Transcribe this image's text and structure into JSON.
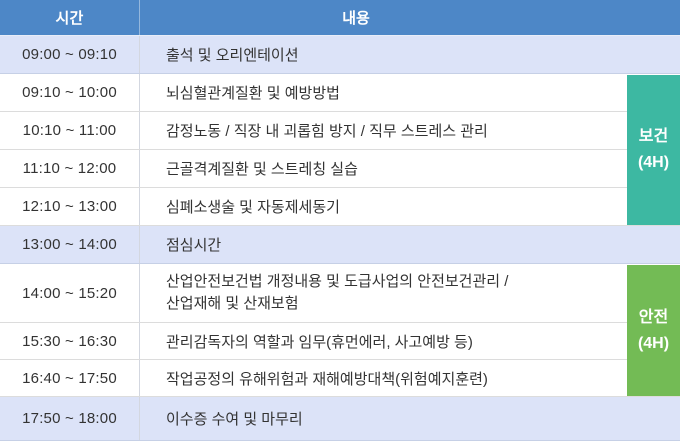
{
  "table": {
    "columns": {
      "time": "시간",
      "content": "내용"
    },
    "rows": [
      {
        "time": "09:00 ~ 09:10",
        "content": "출석 및 오리엔테이션",
        "highlight": true
      },
      {
        "time": "09:10 ~ 10:00",
        "content": "뇌심혈관계질환 및 예방방법",
        "highlight": false
      },
      {
        "time": "10:10 ~ 11:00",
        "content": "감정노동 / 직장 내 괴롭힘 방지 / 직무 스트레스 관리",
        "highlight": false
      },
      {
        "time": "11:10 ~ 12:00",
        "content": "근골격계질환 및 스트레칭 실습",
        "highlight": false
      },
      {
        "time": "12:10 ~ 13:00",
        "content": "심폐소생술 및 자동제세동기",
        "highlight": false
      },
      {
        "time": "13:00 ~ 14:00",
        "content": "점심시간",
        "highlight": true
      },
      {
        "time": "14:00 ~ 15:20",
        "content_lines": [
          "산업안전보건법 개정내용 및 도급사업의 안전보건관리 /",
          "산업재해 및 산재보험"
        ],
        "highlight": false
      },
      {
        "time": "15:30 ~ 16:30",
        "content": "관리감독자의 역할과 임무(휴먼에러, 사고예방 등)",
        "highlight": false
      },
      {
        "time": "16:40 ~ 17:50",
        "content": "작업공정의 유해위험과 재해예방대책(위험예지훈련)",
        "highlight": false
      },
      {
        "time": "17:50 ~ 18:00",
        "content": "이수증 수여 및 마무리",
        "highlight": true
      }
    ],
    "side_labels": [
      {
        "title": "보건",
        "hours": "(4H)",
        "color": "#3db8a2",
        "covers": "09:10 ~ 13:00"
      },
      {
        "title": "안전",
        "hours": "(4H)",
        "color": "#73bb55",
        "covers": "14:00 ~ 17:50"
      }
    ]
  },
  "colors": {
    "header_bg": "#4d87c7",
    "header_text": "#ffffff",
    "highlight_row_bg": "#dce3f8",
    "body_text": "#333333",
    "health_block": "#3db8a2",
    "safety_block": "#73bb55",
    "row_border": "#dcdcdc"
  }
}
